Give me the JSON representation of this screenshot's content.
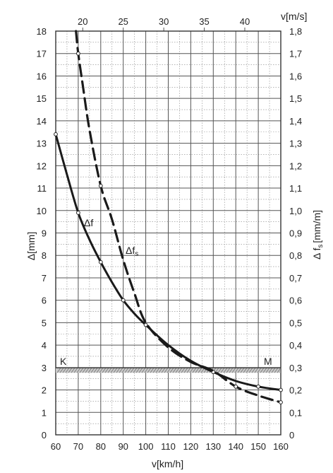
{
  "chart_data": {
    "type": "line",
    "xlabel": "v[km/h]",
    "x2label": "v[m/s]",
    "ylabel": "Δ[mm]",
    "y2label_main": "Δ f",
    "y2label_sub": "s",
    "y2label_unit": "[mm/m]",
    "xlim": [
      60,
      160
    ],
    "ylim": [
      0,
      18
    ],
    "y2lim": [
      0,
      1.8
    ],
    "x_ticks": [
      "60",
      "70",
      "80",
      "90",
      "100",
      "110",
      "120",
      "130",
      "140",
      "150",
      "160"
    ],
    "x2_ticks": [
      {
        "value": 20,
        "label": "20"
      },
      {
        "value": 25,
        "label": "25"
      },
      {
        "value": 30,
        "label": "30"
      },
      {
        "value": 35,
        "label": "35"
      },
      {
        "value": 40,
        "label": "40"
      }
    ],
    "y_ticks": [
      "0",
      "1",
      "2",
      "3",
      "4",
      "5",
      "6",
      "7",
      "8",
      "9",
      "10",
      "11",
      "12",
      "13",
      "14",
      "15",
      "16",
      "17",
      "18"
    ],
    "y2_ticks": [
      "0",
      "0,1",
      "0,2",
      "0,3",
      "0,4",
      "0,5",
      "0,6",
      "0,7",
      "0,8",
      "0,9",
      "1,0",
      "1,1",
      "1,2",
      "1,3",
      "1,4",
      "1,5",
      "1,6",
      "1,7",
      "1,8"
    ],
    "grid": true,
    "band": {
      "y": 2.8,
      "left_label": "K",
      "right_label": "M"
    },
    "series": [
      {
        "name": "Δf",
        "style": "solid",
        "points": [
          [
            60,
            13.4
          ],
          [
            65,
            11.6
          ],
          [
            70,
            9.9
          ],
          [
            75,
            8.7
          ],
          [
            80,
            7.7
          ],
          [
            85,
            6.8
          ],
          [
            90,
            6.0
          ],
          [
            95,
            5.4
          ],
          [
            100,
            4.9
          ],
          [
            110,
            4.0
          ],
          [
            120,
            3.3
          ],
          [
            130,
            2.8
          ],
          [
            140,
            2.4
          ],
          [
            150,
            2.15
          ],
          [
            160,
            2.0
          ]
        ],
        "markers": [
          [
            60,
            13.4
          ],
          [
            70,
            9.9
          ],
          [
            80,
            7.7
          ],
          [
            90,
            6.0
          ],
          [
            100,
            4.9
          ],
          [
            130,
            2.8
          ],
          [
            150,
            2.15
          ],
          [
            160,
            2.0
          ]
        ]
      },
      {
        "name": "Δfs",
        "style": "dashed",
        "points": [
          [
            69,
            18
          ],
          [
            70,
            17.0
          ],
          [
            72,
            15.6
          ],
          [
            75,
            13.6
          ],
          [
            80,
            11.1
          ],
          [
            85,
            9.6
          ],
          [
            90,
            7.8
          ],
          [
            95,
            6.3
          ],
          [
            100,
            5.0
          ],
          [
            110,
            3.9
          ],
          [
            120,
            3.25
          ],
          [
            130,
            2.85
          ],
          [
            140,
            2.15
          ],
          [
            150,
            1.75
          ],
          [
            160,
            1.45
          ]
        ],
        "markers": [
          [
            70,
            17.0
          ],
          [
            80,
            11.1
          ],
          [
            140,
            2.15
          ],
          [
            160,
            1.45
          ]
        ]
      }
    ]
  }
}
